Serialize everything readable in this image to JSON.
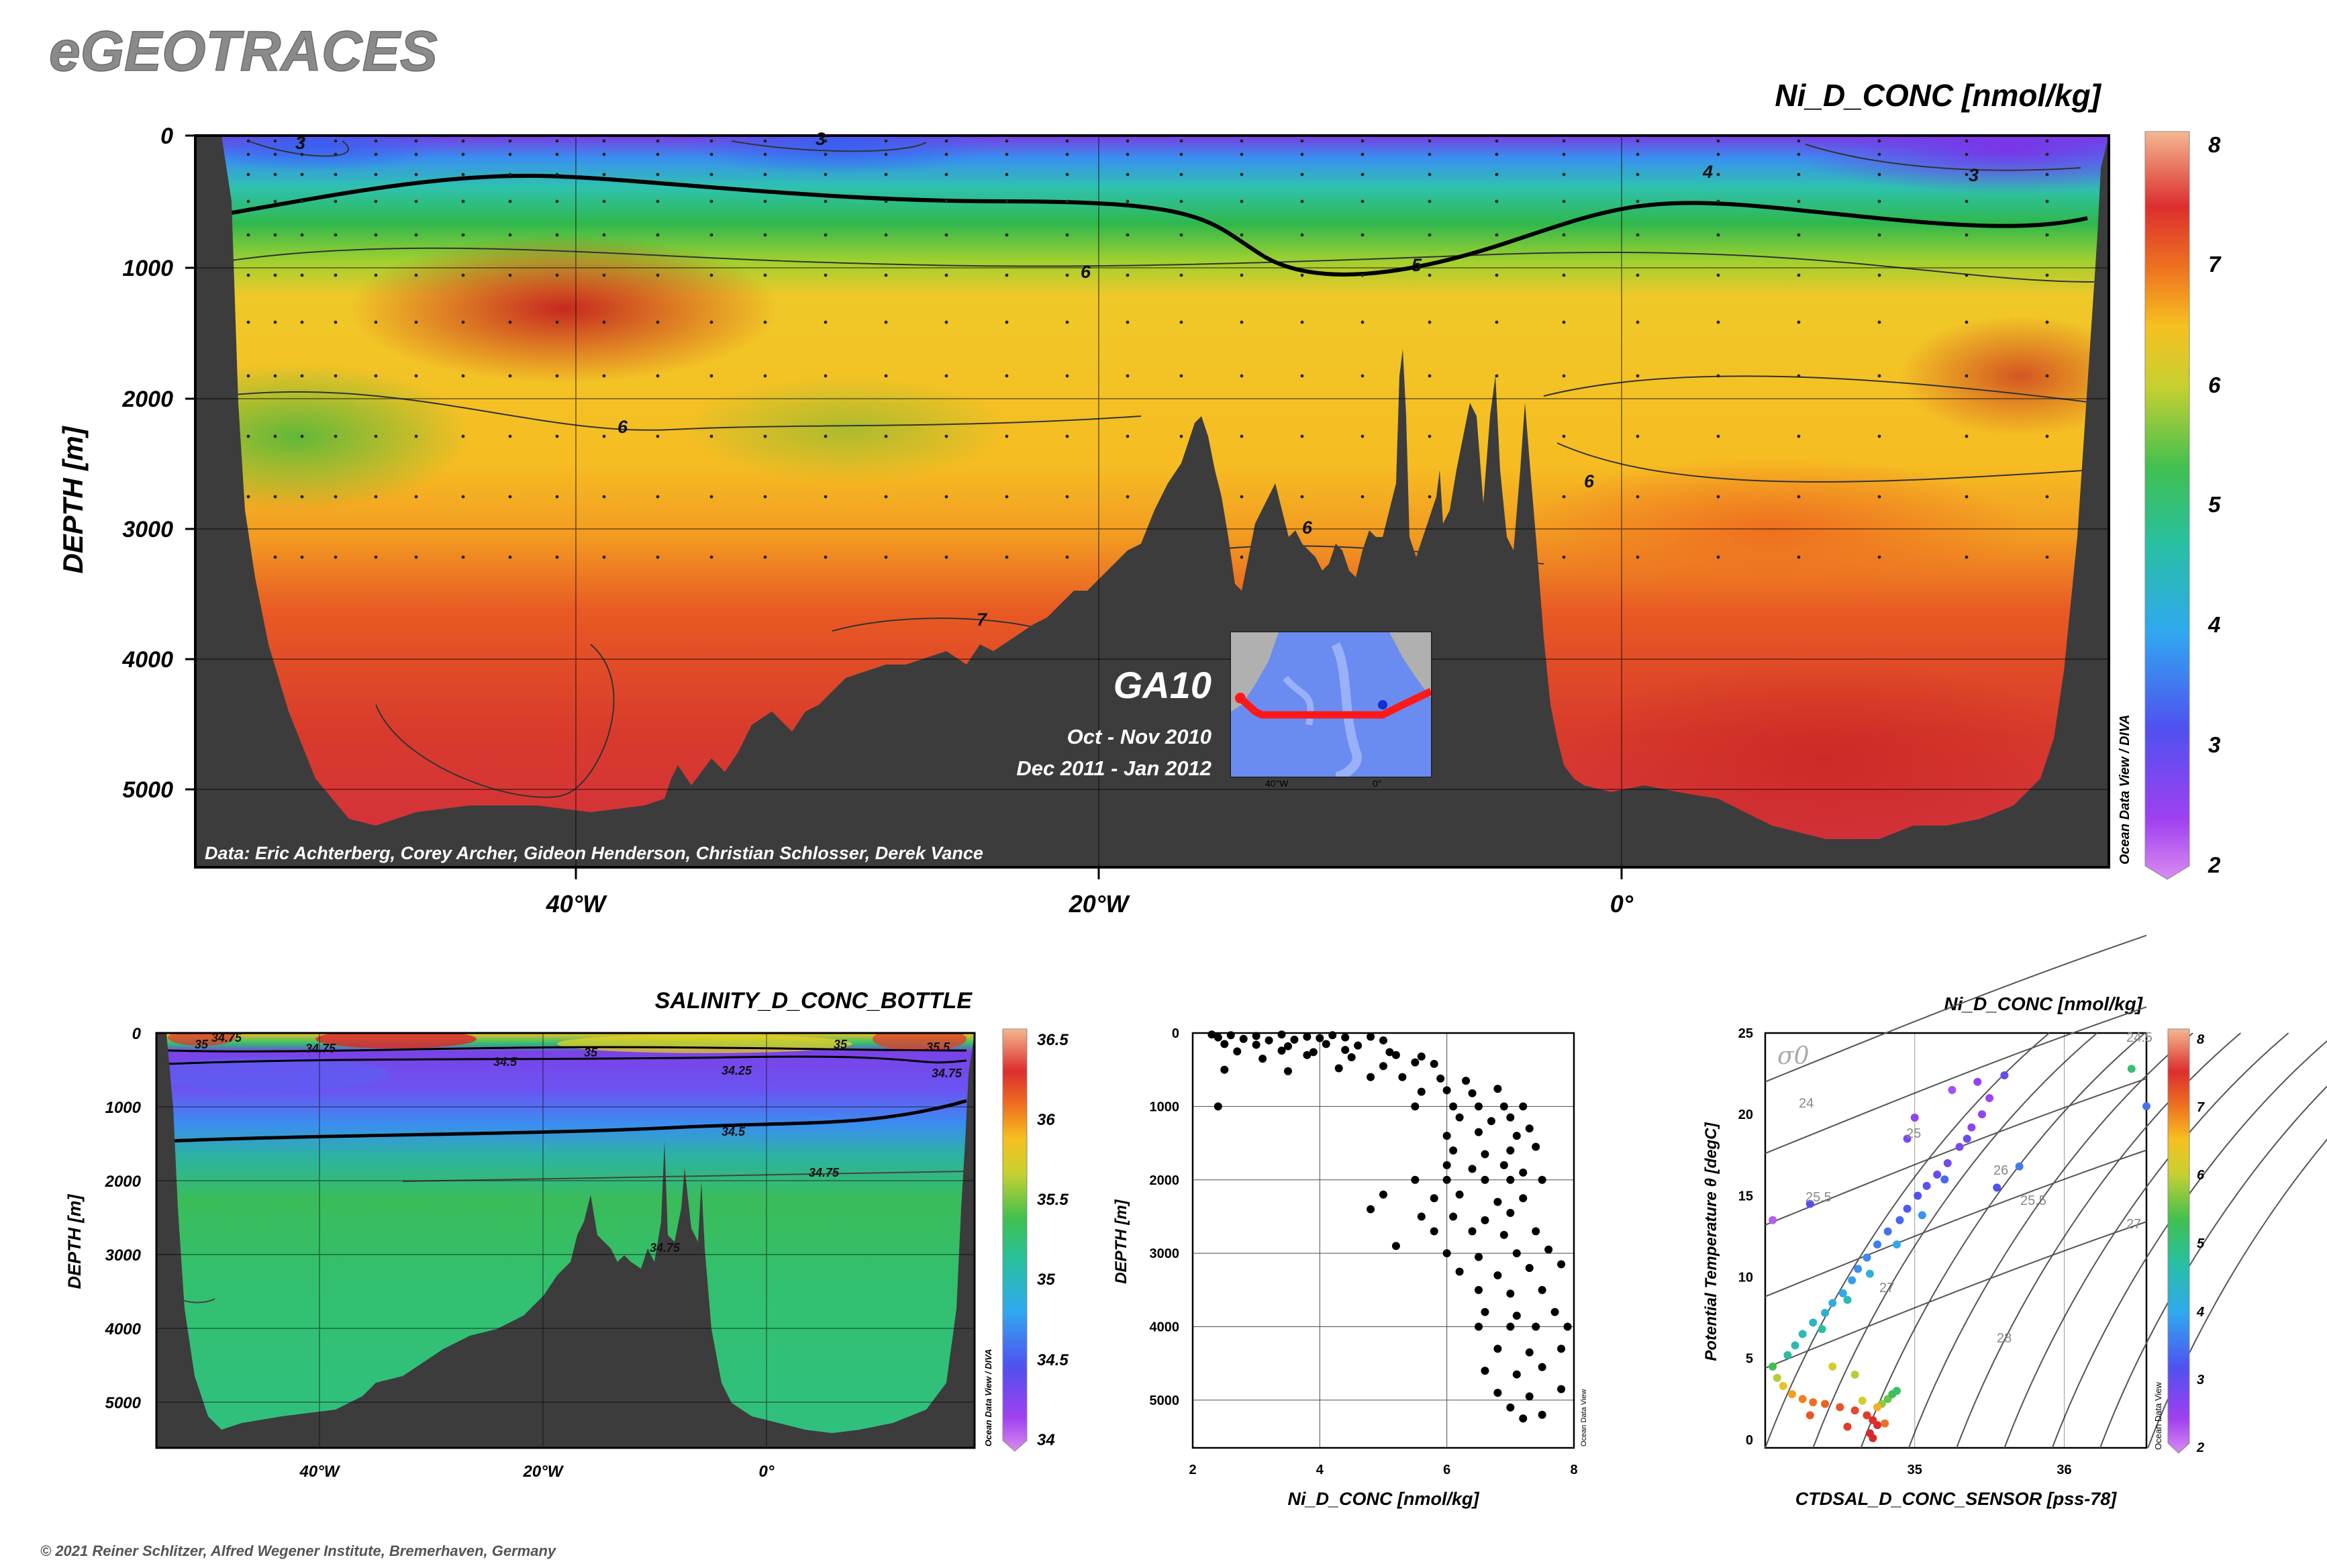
{
  "brand": "eGEOTRACES",
  "copyright": "© 2021 Reiner Schlitzer, Alfred Wegener Institute, Bremerhaven, Germany",
  "colors": {
    "land": "#3c3c3c",
    "frame": "#000000",
    "section_line": "#ff2020"
  },
  "main_section": {
    "title": "Ni_D_CONC [nmol/kg]",
    "ylabel": "DEPTH [m]",
    "depth_ticks": [
      "0",
      "1000",
      "2000",
      "3000",
      "4000",
      "5000"
    ],
    "lon_ticks": [
      "40°W",
      "20°W",
      "0°"
    ],
    "colorbar_ticks": [
      "2",
      "3",
      "4",
      "5",
      "6",
      "7",
      "8"
    ],
    "colorbar_label": "Ocean Data View / DIVA",
    "contour_labels": [
      "3",
      "3",
      "4",
      "3",
      "6",
      "5",
      "6",
      "6",
      "6",
      "7"
    ],
    "data_credit": "Data: Eric Achterberg, Corey Archer, Gideon Henderson, Christian Schlosser, Derek Vance",
    "cruise": {
      "name": "GA10",
      "dates": [
        "Oct - Nov 2010",
        "Dec 2011 - Jan 2012"
      ],
      "inset_ticks": [
        "40°W",
        "0°"
      ]
    }
  },
  "salinity_section": {
    "title": "SALINITY_D_CONC_BOTTLE",
    "ylabel": "DEPTH [m]",
    "depth_ticks": [
      "0",
      "1000",
      "2000",
      "3000",
      "4000",
      "5000"
    ],
    "lon_ticks": [
      "40°W",
      "20°W",
      "0°"
    ],
    "colorbar_ticks": [
      "34",
      "34.5",
      "35",
      "35.5",
      "36",
      "36.5"
    ],
    "colorbar_label": "Ocean Data View / DIVA",
    "contour_labels": [
      "34.75",
      "35",
      "34.75",
      "35",
      "34.5",
      "34.25",
      "35",
      "35.5",
      "34.75",
      "34.5",
      "34.75",
      "34.75"
    ]
  },
  "profile_plot": {
    "xlabel": "Ni_D_CONC [nmol/kg]",
    "ylabel": "DEPTH [m]",
    "x_ticks": [
      "2",
      "4",
      "6",
      "8"
    ],
    "y_ticks": [
      "0",
      "1000",
      "2000",
      "3000",
      "4000",
      "5000"
    ],
    "side_label": "Ocean Data View"
  },
  "ts_plot": {
    "title": "Ni_D_CONC [nmol/kg]",
    "xlabel": "CTDSAL_D_CONC_SENSOR [pss-78]",
    "ylabel": "Potential Temperature θ [degC]",
    "x_ticks": [
      "35",
      "36"
    ],
    "y_ticks": [
      "0",
      "5",
      "10",
      "15",
      "20",
      "25"
    ],
    "sigma_label": "σ0",
    "isopycnal_labels": [
      "24",
      "24.5",
      "25",
      "25.5",
      "25.5",
      "26",
      "27",
      "27",
      "28"
    ],
    "colorbar_ticks": [
      "2",
      "3",
      "4",
      "5",
      "6",
      "7",
      "8"
    ],
    "colorbar_label": "Ocean Data View"
  },
  "chart_data": [
    {
      "type": "heatmap",
      "variable": "Ni_D_CONC [nmol/kg]",
      "x_range": [
        -54,
        19
      ],
      "ylim": [
        5650,
        0
      ],
      "ylabel": "DEPTH [m]",
      "color_range": [
        2,
        8
      ],
      "contour_levels": [
        3,
        4,
        5,
        6,
        7
      ]
    },
    {
      "type": "heatmap",
      "variable": "SALINITY_D_CONC_BOTTLE",
      "x_range": [
        -54,
        19
      ],
      "ylim": [
        5650,
        0
      ],
      "ylabel": "DEPTH [m]",
      "color_range": [
        34,
        36.5
      ],
      "contour_levels": [
        34.25,
        34.5,
        34.75,
        35,
        35.5
      ]
    },
    {
      "type": "scatter",
      "xlabel": "Ni_D_CONC [nmol/kg]",
      "ylabel": "DEPTH [m]",
      "xlim": [
        2,
        8
      ],
      "ylim": [
        5650,
        0
      ],
      "points": [
        [
          2.3,
          20
        ],
        [
          2.6,
          30
        ],
        [
          3.0,
          40
        ],
        [
          3.4,
          20
        ],
        [
          3.8,
          50
        ],
        [
          4.2,
          30
        ],
        [
          2.4,
          60
        ],
        [
          2.8,
          80
        ],
        [
          3.2,
          100
        ],
        [
          3.6,
          90
        ],
        [
          4.0,
          70
        ],
        [
          4.4,
          60
        ],
        [
          4.8,
          50
        ],
        [
          5.0,
          100
        ],
        [
          2.5,
          150
        ],
        [
          3.0,
          160
        ],
        [
          3.5,
          180
        ],
        [
          4.1,
          150
        ],
        [
          4.6,
          170
        ],
        [
          2.7,
          250
        ],
        [
          3.4,
          240
        ],
        [
          3.9,
          260
        ],
        [
          4.4,
          230
        ],
        [
          5.1,
          260
        ],
        [
          3.1,
          350
        ],
        [
          3.8,
          300
        ],
        [
          4.5,
          330
        ],
        [
          5.2,
          300
        ],
        [
          5.6,
          320
        ],
        [
          2.5,
          500
        ],
        [
          3.5,
          520
        ],
        [
          4.3,
          480
        ],
        [
          5.0,
          450
        ],
        [
          5.5,
          400
        ],
        [
          5.8,
          420
        ],
        [
          4.8,
          600
        ],
        [
          5.3,
          600
        ],
        [
          5.9,
          620
        ],
        [
          6.3,
          650
        ],
        [
          5.6,
          800
        ],
        [
          6.0,
          780
        ],
        [
          6.4,
          820
        ],
        [
          6.8,
          760
        ],
        [
          2.4,
          1000
        ],
        [
          5.5,
          1000
        ],
        [
          6.1,
          1000
        ],
        [
          6.5,
          1000
        ],
        [
          6.9,
          1000
        ],
        [
          7.2,
          1000
        ],
        [
          6.2,
          1150
        ],
        [
          6.7,
          1200
        ],
        [
          7.0,
          1150
        ],
        [
          6.0,
          1400
        ],
        [
          6.5,
          1350
        ],
        [
          7.1,
          1400
        ],
        [
          7.3,
          1300
        ],
        [
          6.1,
          1600
        ],
        [
          6.6,
          1650
        ],
        [
          7.0,
          1600
        ],
        [
          7.4,
          1550
        ],
        [
          6.0,
          1800
        ],
        [
          6.4,
          1850
        ],
        [
          6.9,
          1800
        ],
        [
          7.2,
          1900
        ],
        [
          5.5,
          2000
        ],
        [
          6.0,
          2000
        ],
        [
          6.6,
          2000
        ],
        [
          7.0,
          2000
        ],
        [
          7.5,
          2000
        ],
        [
          5.0,
          2200
        ],
        [
          5.8,
          2250
        ],
        [
          6.2,
          2200
        ],
        [
          6.8,
          2300
        ],
        [
          7.2,
          2250
        ],
        [
          4.8,
          2400
        ],
        [
          5.6,
          2500
        ],
        [
          6.1,
          2500
        ],
        [
          6.6,
          2550
        ],
        [
          7.0,
          2450
        ],
        [
          5.8,
          2700
        ],
        [
          6.4,
          2700
        ],
        [
          6.9,
          2750
        ],
        [
          7.4,
          2700
        ],
        [
          5.2,
          2900
        ],
        [
          6.0,
          3000
        ],
        [
          6.5,
          3050
        ],
        [
          7.1,
          3000
        ],
        [
          7.6,
          2950
        ],
        [
          6.2,
          3250
        ],
        [
          6.8,
          3300
        ],
        [
          7.3,
          3200
        ],
        [
          7.8,
          3150
        ],
        [
          6.5,
          3500
        ],
        [
          7.0,
          3550
        ],
        [
          7.5,
          3500
        ],
        [
          6.6,
          3800
        ],
        [
          7.1,
          3850
        ],
        [
          7.7,
          3800
        ],
        [
          6.5,
          4000
        ],
        [
          7.0,
          4000
        ],
        [
          7.4,
          4000
        ],
        [
          7.9,
          4000
        ],
        [
          6.8,
          4300
        ],
        [
          7.3,
          4350
        ],
        [
          7.8,
          4300
        ],
        [
          6.6,
          4600
        ],
        [
          7.1,
          4650
        ],
        [
          7.5,
          4550
        ],
        [
          6.8,
          4900
        ],
        [
          7.3,
          4950
        ],
        [
          7.8,
          4850
        ],
        [
          7.0,
          5100
        ],
        [
          7.5,
          5200
        ],
        [
          7.2,
          5250
        ]
      ]
    },
    {
      "type": "scatter",
      "xlabel": "CTDSAL_D_CONC_SENSOR [pss-78]",
      "ylabel": "Potential Temperature θ [degC]",
      "xlim": [
        34.0,
        36.55
      ],
      "ylim": [
        -0.5,
        25
      ],
      "color_variable": "Ni_D_CONC [nmol/kg]",
      "color_range": [
        2,
        8
      ],
      "points": [
        [
          34.05,
          4.5,
          5.2
        ],
        [
          34.08,
          3.8,
          5.8
        ],
        [
          34.12,
          3.3,
          6.2
        ],
        [
          34.18,
          2.8,
          6.6
        ],
        [
          34.25,
          2.5,
          6.8
        ],
        [
          34.32,
          2.3,
          6.9
        ],
        [
          34.4,
          2.2,
          7.0
        ],
        [
          34.5,
          2.0,
          7.1
        ],
        [
          34.6,
          1.8,
          7.2
        ],
        [
          34.68,
          1.5,
          7.3
        ],
        [
          34.72,
          1.2,
          7.4
        ],
        [
          34.75,
          0.9,
          7.5
        ],
        [
          34.7,
          0.4,
          7.6
        ],
        [
          34.72,
          0.1,
          7.6
        ],
        [
          34.78,
          2.2,
          5.6
        ],
        [
          34.82,
          2.5,
          5.4
        ],
        [
          34.85,
          2.8,
          5.2
        ],
        [
          34.88,
          3.0,
          5.0
        ],
        [
          34.75,
          2.0,
          6.5
        ],
        [
          34.65,
          2.4,
          6.0
        ],
        [
          34.15,
          5.2,
          4.6
        ],
        [
          34.2,
          5.8,
          4.5
        ],
        [
          34.25,
          6.5,
          4.4
        ],
        [
          34.32,
          7.2,
          4.3
        ],
        [
          34.4,
          7.8,
          4.2
        ],
        [
          34.45,
          8.4,
          4.1
        ],
        [
          34.52,
          9.0,
          4.0
        ],
        [
          34.58,
          9.8,
          3.9
        ],
        [
          34.62,
          10.5,
          3.8
        ],
        [
          34.68,
          11.2,
          3.7
        ],
        [
          34.75,
          12.0,
          3.6
        ],
        [
          34.82,
          12.8,
          3.5
        ],
        [
          34.9,
          13.5,
          3.4
        ],
        [
          34.95,
          14.2,
          3.3
        ],
        [
          35.02,
          15.0,
          3.2
        ],
        [
          35.08,
          15.6,
          3.1
        ],
        [
          35.15,
          16.3,
          3.0
        ],
        [
          35.22,
          17.0,
          2.9
        ],
        [
          35.3,
          18.0,
          2.8
        ],
        [
          35.38,
          19.2,
          2.7
        ],
        [
          35.45,
          20.0,
          2.6
        ],
        [
          35.5,
          21.0,
          2.5
        ],
        [
          35.42,
          22.0,
          2.6
        ],
        [
          35.35,
          18.5,
          3.0
        ],
        [
          35.2,
          16.0,
          3.4
        ],
        [
          35.05,
          13.8,
          3.8
        ],
        [
          34.88,
          12.0,
          4.0
        ],
        [
          34.7,
          10.2,
          4.2
        ],
        [
          34.55,
          8.6,
          4.4
        ],
        [
          34.38,
          6.8,
          4.6
        ],
        [
          36.45,
          22.8,
          5.0
        ],
        [
          36.55,
          20.5,
          3.5
        ],
        [
          35.6,
          22.4,
          3.0
        ],
        [
          35.7,
          16.8,
          3.6
        ],
        [
          35.55,
          15.5,
          3.2
        ],
        [
          35.0,
          19.8,
          2.6
        ],
        [
          34.95,
          18.5,
          2.8
        ],
        [
          35.25,
          21.5,
          2.4
        ],
        [
          34.3,
          14.5,
          3.2
        ],
        [
          34.05,
          13.5,
          2.3
        ],
        [
          34.6,
          4.0,
          5.8
        ],
        [
          34.45,
          4.5,
          6.0
        ],
        [
          34.3,
          1.5,
          7.1
        ],
        [
          34.55,
          0.8,
          7.3
        ],
        [
          34.8,
          1.0,
          6.9
        ]
      ]
    }
  ]
}
